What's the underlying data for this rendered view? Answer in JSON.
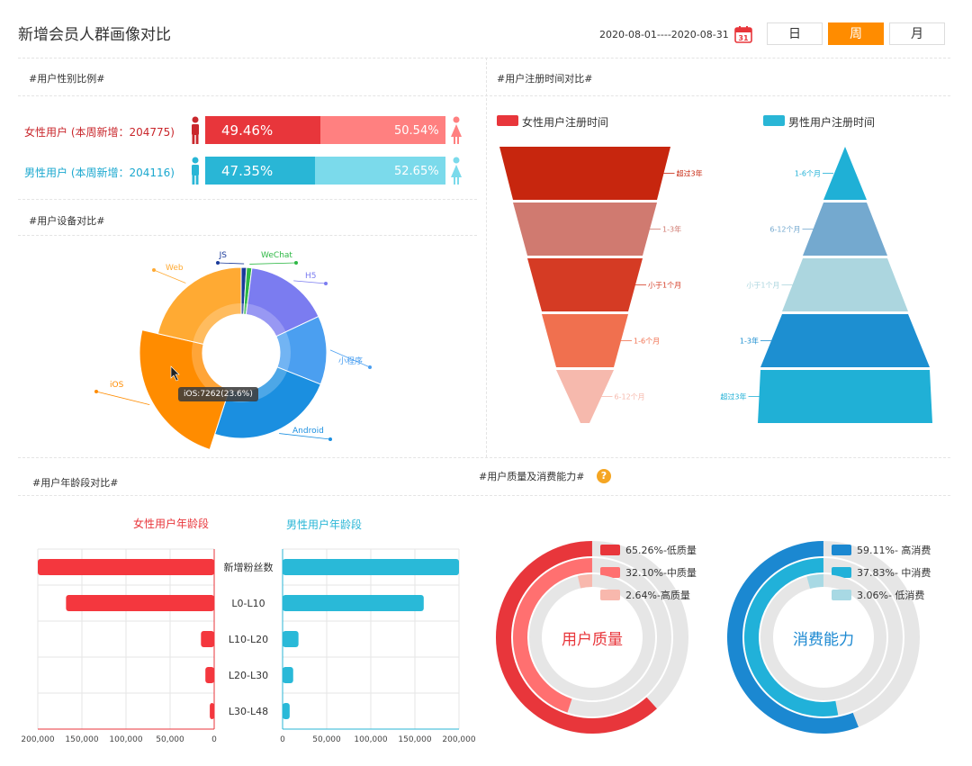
{
  "header": {
    "title": "新增会员人群画像对比",
    "date_range": "2020-08-01----2020-08-31",
    "period_buttons": [
      "日",
      "周",
      "月"
    ],
    "active_period": "周"
  },
  "sections": {
    "gender": "#用户性别比例#",
    "device": "#用户设备对比#",
    "register": "#用户注册时间对比#",
    "age": "#用户年龄段对比#",
    "quality": "#用户质量及消费能力#"
  },
  "colors": {
    "female_dark": "#e8363b",
    "female_light": "#ff8080",
    "male_dark": "#29b6d6",
    "male_light": "#7bdaeb",
    "accent": "#ff8c00"
  },
  "chart_data": [
    {
      "type": "bar",
      "title": "#用户性别比例#",
      "series": [
        {
          "name": "女性用户 (本周新增：204775)",
          "values": [
            49.46,
            50.54
          ],
          "labels": [
            "49.46%",
            "50.54%"
          ]
        },
        {
          "name": "男性用户 (本周新增：204116)",
          "values": [
            47.35,
            52.65
          ],
          "labels": [
            "47.35%",
            "52.65%"
          ]
        }
      ]
    },
    {
      "type": "pie",
      "title": "#用户设备对比#",
      "categories": [
        "JS",
        "WeChat",
        "H5",
        "小程序",
        "Android",
        "iOS",
        "Web"
      ],
      "values": [
        1,
        1,
        16,
        13,
        24,
        23.6,
        21.4
      ],
      "colors": [
        "#1a3a9a",
        "#2eb845",
        "#7b7cf0",
        "#4b9ff0",
        "#1b8fe0",
        "#ff8c00",
        "#ffaa33"
      ],
      "tooltip": "iOS:7262(23.6%)"
    },
    {
      "type": "funnel",
      "title": "女性用户注册时间",
      "categories": [
        "超过3年",
        "1-3年",
        "小于1个月",
        "1-6个月",
        "6-12个月"
      ],
      "values": [
        100,
        80,
        60,
        40,
        20
      ],
      "colors": [
        "#c7260e",
        "#d07a70",
        "#d53b24",
        "#f0704f",
        "#f6b9ad"
      ]
    },
    {
      "type": "funnel",
      "title": "男性用户注册时间",
      "categories": [
        "1-6个月",
        "6-12个月",
        "小于1个月",
        "1-3年",
        "超过3年"
      ],
      "values": [
        20,
        40,
        60,
        80,
        100
      ],
      "colors": [
        "#1fb0d6",
        "#74a9cf",
        "#acd6df",
        "#1d8fd1",
        "#20b0d6"
      ]
    },
    {
      "type": "bar",
      "title": "#用户年龄段对比#",
      "categories": [
        "新增粉丝数",
        "L0-L10",
        "L10-L20",
        "L20-L30",
        "L30-L48"
      ],
      "series": [
        {
          "name": "女性用户年龄段",
          "values": [
            200000,
            168000,
            15000,
            10000,
            5000
          ]
        },
        {
          "name": "男性用户年龄段",
          "values": [
            200000,
            160000,
            18000,
            12000,
            8000
          ]
        }
      ],
      "ticks_left": [
        "200,000",
        "150,000",
        "100,000",
        "50,000",
        "0"
      ],
      "ticks_right": [
        "0",
        "50,000",
        "100,000",
        "150,000",
        "200,000"
      ],
      "xlim": [
        0,
        200000
      ]
    },
    {
      "type": "pie",
      "title": "用户质量",
      "categories": [
        "65.26%-低质量",
        "32.10%-中质量",
        "2.64%-高质量"
      ],
      "values": [
        65.26,
        32.1,
        2.64
      ],
      "colors": [
        "#e8363b",
        "#ff7070",
        "#f8b8ad"
      ]
    },
    {
      "type": "pie",
      "title": "消费能力",
      "categories": [
        "59.11%- 高消费",
        "37.83%- 中消费",
        "3.06%- 低消费"
      ],
      "values": [
        59.11,
        37.83,
        3.06
      ],
      "colors": [
        "#1b88d1",
        "#21b1d9",
        "#a8d9e4"
      ]
    }
  ]
}
